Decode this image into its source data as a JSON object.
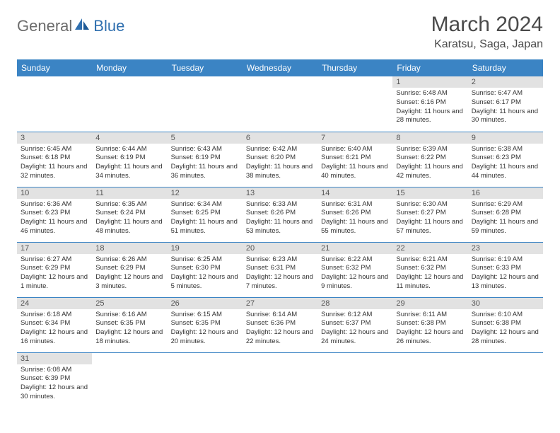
{
  "logo": {
    "part1": "General",
    "part2": "Blue"
  },
  "title": "March 2024",
  "location": "Karatsu, Saga, Japan",
  "colors": {
    "header_bg": "#3b84c4",
    "header_text": "#ffffff",
    "daynum_bg": "#e2e2e2",
    "border": "#3b84c4",
    "logo_gray": "#6c6c6c",
    "logo_blue": "#2f6faf"
  },
  "daysOfWeek": [
    "Sunday",
    "Monday",
    "Tuesday",
    "Wednesday",
    "Thursday",
    "Friday",
    "Saturday"
  ],
  "weeks": [
    [
      null,
      null,
      null,
      null,
      null,
      {
        "n": "1",
        "sunrise": "Sunrise: 6:48 AM",
        "sunset": "Sunset: 6:16 PM",
        "daylight": "Daylight: 11 hours and 28 minutes."
      },
      {
        "n": "2",
        "sunrise": "Sunrise: 6:47 AM",
        "sunset": "Sunset: 6:17 PM",
        "daylight": "Daylight: 11 hours and 30 minutes."
      }
    ],
    [
      {
        "n": "3",
        "sunrise": "Sunrise: 6:45 AM",
        "sunset": "Sunset: 6:18 PM",
        "daylight": "Daylight: 11 hours and 32 minutes."
      },
      {
        "n": "4",
        "sunrise": "Sunrise: 6:44 AM",
        "sunset": "Sunset: 6:19 PM",
        "daylight": "Daylight: 11 hours and 34 minutes."
      },
      {
        "n": "5",
        "sunrise": "Sunrise: 6:43 AM",
        "sunset": "Sunset: 6:19 PM",
        "daylight": "Daylight: 11 hours and 36 minutes."
      },
      {
        "n": "6",
        "sunrise": "Sunrise: 6:42 AM",
        "sunset": "Sunset: 6:20 PM",
        "daylight": "Daylight: 11 hours and 38 minutes."
      },
      {
        "n": "7",
        "sunrise": "Sunrise: 6:40 AM",
        "sunset": "Sunset: 6:21 PM",
        "daylight": "Daylight: 11 hours and 40 minutes."
      },
      {
        "n": "8",
        "sunrise": "Sunrise: 6:39 AM",
        "sunset": "Sunset: 6:22 PM",
        "daylight": "Daylight: 11 hours and 42 minutes."
      },
      {
        "n": "9",
        "sunrise": "Sunrise: 6:38 AM",
        "sunset": "Sunset: 6:23 PM",
        "daylight": "Daylight: 11 hours and 44 minutes."
      }
    ],
    [
      {
        "n": "10",
        "sunrise": "Sunrise: 6:36 AM",
        "sunset": "Sunset: 6:23 PM",
        "daylight": "Daylight: 11 hours and 46 minutes."
      },
      {
        "n": "11",
        "sunrise": "Sunrise: 6:35 AM",
        "sunset": "Sunset: 6:24 PM",
        "daylight": "Daylight: 11 hours and 48 minutes."
      },
      {
        "n": "12",
        "sunrise": "Sunrise: 6:34 AM",
        "sunset": "Sunset: 6:25 PM",
        "daylight": "Daylight: 11 hours and 51 minutes."
      },
      {
        "n": "13",
        "sunrise": "Sunrise: 6:33 AM",
        "sunset": "Sunset: 6:26 PM",
        "daylight": "Daylight: 11 hours and 53 minutes."
      },
      {
        "n": "14",
        "sunrise": "Sunrise: 6:31 AM",
        "sunset": "Sunset: 6:26 PM",
        "daylight": "Daylight: 11 hours and 55 minutes."
      },
      {
        "n": "15",
        "sunrise": "Sunrise: 6:30 AM",
        "sunset": "Sunset: 6:27 PM",
        "daylight": "Daylight: 11 hours and 57 minutes."
      },
      {
        "n": "16",
        "sunrise": "Sunrise: 6:29 AM",
        "sunset": "Sunset: 6:28 PM",
        "daylight": "Daylight: 11 hours and 59 minutes."
      }
    ],
    [
      {
        "n": "17",
        "sunrise": "Sunrise: 6:27 AM",
        "sunset": "Sunset: 6:29 PM",
        "daylight": "Daylight: 12 hours and 1 minute."
      },
      {
        "n": "18",
        "sunrise": "Sunrise: 6:26 AM",
        "sunset": "Sunset: 6:29 PM",
        "daylight": "Daylight: 12 hours and 3 minutes."
      },
      {
        "n": "19",
        "sunrise": "Sunrise: 6:25 AM",
        "sunset": "Sunset: 6:30 PM",
        "daylight": "Daylight: 12 hours and 5 minutes."
      },
      {
        "n": "20",
        "sunrise": "Sunrise: 6:23 AM",
        "sunset": "Sunset: 6:31 PM",
        "daylight": "Daylight: 12 hours and 7 minutes."
      },
      {
        "n": "21",
        "sunrise": "Sunrise: 6:22 AM",
        "sunset": "Sunset: 6:32 PM",
        "daylight": "Daylight: 12 hours and 9 minutes."
      },
      {
        "n": "22",
        "sunrise": "Sunrise: 6:21 AM",
        "sunset": "Sunset: 6:32 PM",
        "daylight": "Daylight: 12 hours and 11 minutes."
      },
      {
        "n": "23",
        "sunrise": "Sunrise: 6:19 AM",
        "sunset": "Sunset: 6:33 PM",
        "daylight": "Daylight: 12 hours and 13 minutes."
      }
    ],
    [
      {
        "n": "24",
        "sunrise": "Sunrise: 6:18 AM",
        "sunset": "Sunset: 6:34 PM",
        "daylight": "Daylight: 12 hours and 16 minutes."
      },
      {
        "n": "25",
        "sunrise": "Sunrise: 6:16 AM",
        "sunset": "Sunset: 6:35 PM",
        "daylight": "Daylight: 12 hours and 18 minutes."
      },
      {
        "n": "26",
        "sunrise": "Sunrise: 6:15 AM",
        "sunset": "Sunset: 6:35 PM",
        "daylight": "Daylight: 12 hours and 20 minutes."
      },
      {
        "n": "27",
        "sunrise": "Sunrise: 6:14 AM",
        "sunset": "Sunset: 6:36 PM",
        "daylight": "Daylight: 12 hours and 22 minutes."
      },
      {
        "n": "28",
        "sunrise": "Sunrise: 6:12 AM",
        "sunset": "Sunset: 6:37 PM",
        "daylight": "Daylight: 12 hours and 24 minutes."
      },
      {
        "n": "29",
        "sunrise": "Sunrise: 6:11 AM",
        "sunset": "Sunset: 6:38 PM",
        "daylight": "Daylight: 12 hours and 26 minutes."
      },
      {
        "n": "30",
        "sunrise": "Sunrise: 6:10 AM",
        "sunset": "Sunset: 6:38 PM",
        "daylight": "Daylight: 12 hours and 28 minutes."
      }
    ],
    [
      {
        "n": "31",
        "sunrise": "Sunrise: 6:08 AM",
        "sunset": "Sunset: 6:39 PM",
        "daylight": "Daylight: 12 hours and 30 minutes."
      },
      null,
      null,
      null,
      null,
      null,
      null
    ]
  ]
}
